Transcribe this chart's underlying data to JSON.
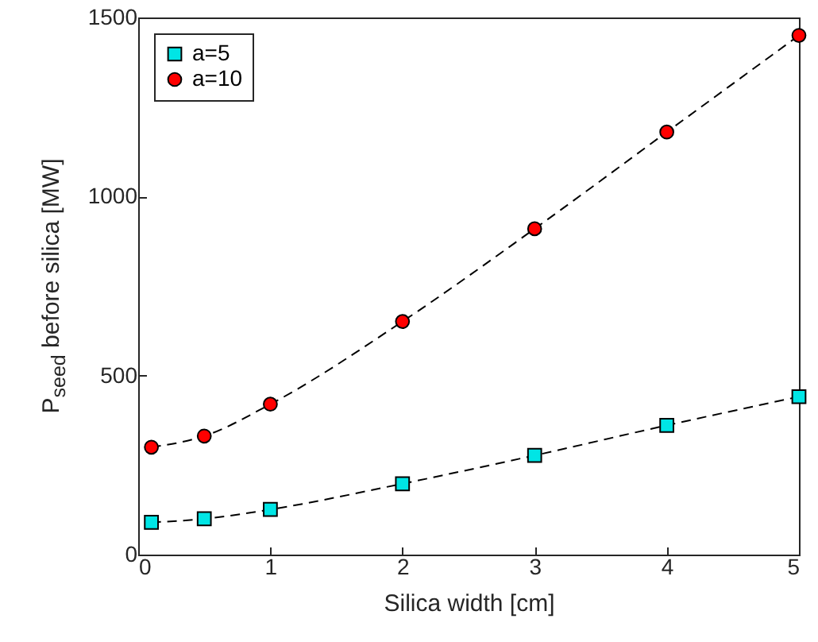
{
  "chart_data": {
    "type": "line",
    "xlabel": "Silica width [cm]",
    "ylabel": "P$_{seed}$ before silica [MW]",
    "x": [
      0.1,
      0.5,
      1,
      2,
      3,
      4,
      5
    ],
    "series": [
      {
        "name": "a=5",
        "color": "#00e5e5",
        "marker": "square",
        "values": [
          90,
          100,
          126,
          198,
          277,
          361,
          441
        ]
      },
      {
        "name": "a=10",
        "color": "#ff0000",
        "marker": "circle",
        "values": [
          300,
          331,
          420,
          651,
          910,
          1180,
          1450
        ]
      }
    ],
    "xlim": [
      0,
      5
    ],
    "xticks": [
      0,
      1,
      2,
      3,
      4,
      5
    ],
    "ylim": [
      0,
      1500
    ],
    "yticks": [
      0,
      500,
      1000,
      1500
    ],
    "line_style": "dashed",
    "grid": false,
    "legend": "top left"
  }
}
